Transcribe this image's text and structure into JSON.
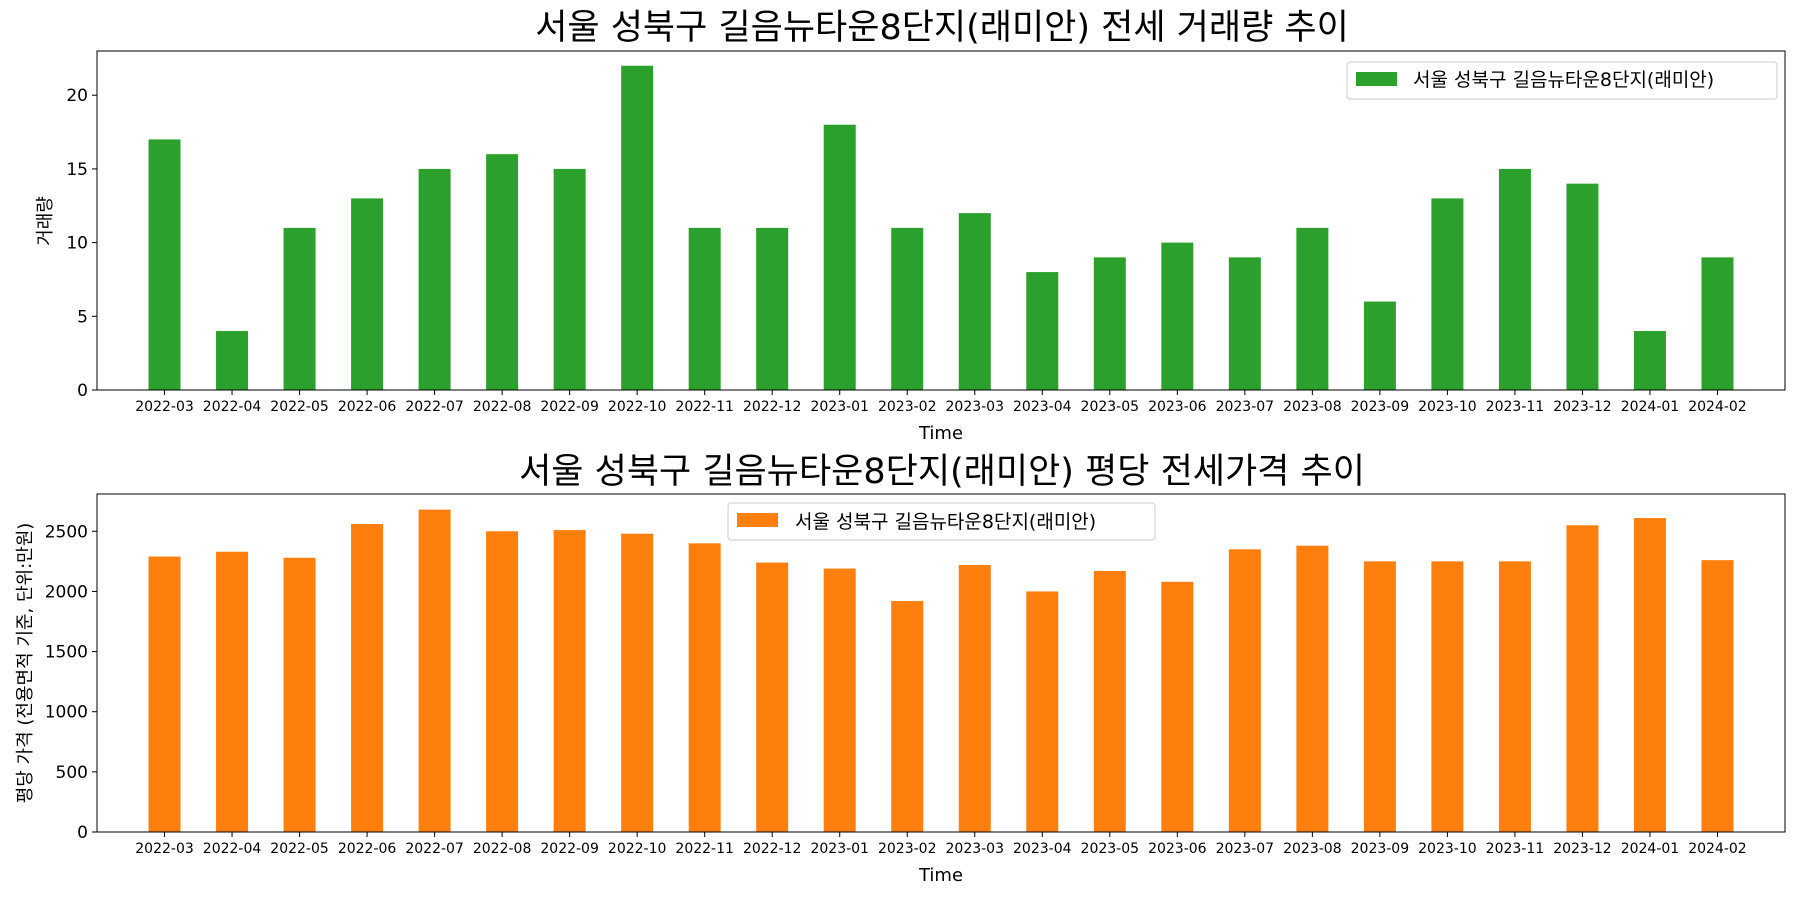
{
  "chart_data": [
    {
      "type": "bar",
      "title": "서울 성북구 길음뉴타운8단지(래미안) 전세 거래량 추이",
      "xlabel": "Time",
      "ylabel": "거래량",
      "ylim": [
        0,
        23
      ],
      "yticks": [
        0,
        5,
        10,
        15,
        20
      ],
      "legend_position": "top-right",
      "color": "#2ca02c",
      "categories": [
        "2022-03",
        "2022-04",
        "2022-05",
        "2022-06",
        "2022-07",
        "2022-08",
        "2022-09",
        "2022-10",
        "2022-11",
        "2022-12",
        "2023-01",
        "2023-02",
        "2023-03",
        "2023-04",
        "2023-05",
        "2023-06",
        "2023-07",
        "2023-08",
        "2023-09",
        "2023-10",
        "2023-11",
        "2023-12",
        "2024-01",
        "2024-02"
      ],
      "series": [
        {
          "name": "서울 성북구 길음뉴타운8단지(래미안)",
          "values": [
            17,
            4,
            11,
            13,
            15,
            16,
            15,
            22,
            11,
            11,
            18,
            11,
            12,
            8,
            9,
            10,
            9,
            11,
            6,
            13,
            15,
            14,
            4,
            9
          ]
        }
      ]
    },
    {
      "type": "bar",
      "title": "서울 성북구 길음뉴타운8단지(래미안) 평당 전세가격 추이",
      "xlabel": "Time",
      "ylabel": "평당 가격 (전용면적 기준, 단위:만원)",
      "ylim": [
        0,
        2810
      ],
      "yticks": [
        0,
        500,
        1000,
        1500,
        2000,
        2500
      ],
      "legend_position": "top-center",
      "color": "#ff7f0e",
      "categories": [
        "2022-03",
        "2022-04",
        "2022-05",
        "2022-06",
        "2022-07",
        "2022-08",
        "2022-09",
        "2022-10",
        "2022-11",
        "2022-12",
        "2023-01",
        "2023-02",
        "2023-03",
        "2023-04",
        "2023-05",
        "2023-06",
        "2023-07",
        "2023-08",
        "2023-09",
        "2023-10",
        "2023-11",
        "2023-12",
        "2024-01",
        "2024-02"
      ],
      "series": [
        {
          "name": "서울 성북구 길음뉴타운8단지(래미안)",
          "values": [
            2290,
            2330,
            2280,
            2560,
            2680,
            2500,
            2510,
            2480,
            2400,
            2240,
            2190,
            1920,
            2220,
            2000,
            2170,
            2080,
            2350,
            2380,
            2250,
            2250,
            2250,
            2550,
            2610,
            2260
          ]
        }
      ]
    }
  ]
}
